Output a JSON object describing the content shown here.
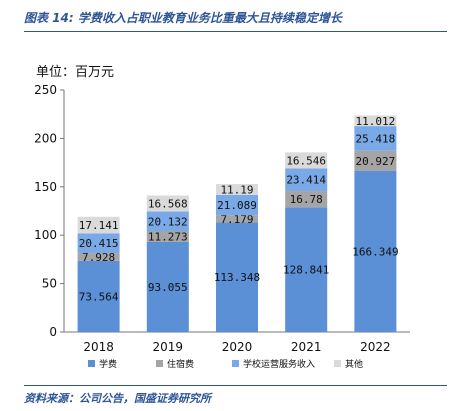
{
  "header": {
    "title": "图表 14:  学费收入占职业教育业务比重最大且持续稳定增长"
  },
  "footer": {
    "source": "资料来源：公司公告，国盛证券研究所"
  },
  "chart_data": {
    "type": "bar",
    "stacked": true,
    "unit_label": "单位：百万元",
    "categories": [
      "2018",
      "2019",
      "2020",
      "2021",
      "2022"
    ],
    "ylim": [
      0,
      250
    ],
    "yticks": [
      "0",
      "50",
      "100",
      "150",
      "200",
      "250"
    ],
    "legend_position": "bottom",
    "series": [
      {
        "name": "学费",
        "color": "#5b8fd6",
        "values": [
          73.564,
          93.055,
          113.348,
          128.841,
          166.349
        ],
        "labels": [
          "73.564",
          "93.055",
          "113.348",
          "128.841",
          "166.349"
        ]
      },
      {
        "name": "住宿费",
        "color": "#a5a5a5",
        "values": [
          7.928,
          11.273,
          7.179,
          16.78,
          20.927
        ],
        "labels": [
          "7.928",
          "11.273",
          "7.179",
          "16.78",
          "20.927"
        ]
      },
      {
        "name": "学校运营服务收入",
        "color": "#7aa9e8",
        "values": [
          20.415,
          20.132,
          21.089,
          23.414,
          25.418
        ],
        "labels": [
          "20.415",
          "20.132",
          "21.089",
          "23.414",
          "25.418"
        ]
      },
      {
        "name": "其他",
        "color": "#dadada",
        "values": [
          17.141,
          16.568,
          11.19,
          16.546,
          11.012
        ],
        "labels": [
          "17.141",
          "16.568",
          "11.19",
          "16.546",
          "11.012"
        ]
      }
    ]
  }
}
